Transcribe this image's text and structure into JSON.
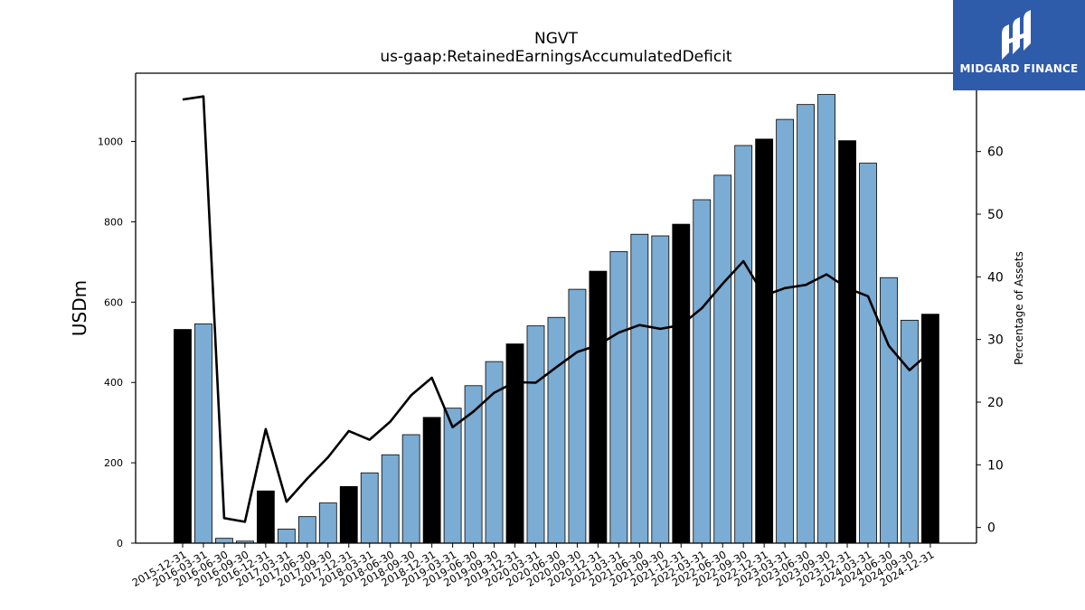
{
  "chart_data": {
    "type": "bar",
    "title": "NGVT",
    "subtitle": "us-gaap:RetainedEarningsAccumulatedDeficit",
    "ylabel": "USDm",
    "y2label": "Percentage of Assets",
    "ylim": [
      0,
      1170
    ],
    "y2lim": [
      -2.5,
      72.5
    ],
    "yticks": [
      0,
      200,
      400,
      600,
      800,
      1000
    ],
    "y2ticks": [
      0,
      10,
      20,
      30,
      40,
      50,
      60
    ],
    "categories": [
      "2015-12-31",
      "2016-03-31",
      "2016-06-30",
      "2016-09-30",
      "2016-12-31",
      "2017-03-31",
      "2017-06-30",
      "2017-09-30",
      "2017-12-31",
      "2018-03-31",
      "2018-06-30",
      "2018-09-30",
      "2018-12-31",
      "2019-03-31",
      "2019-06-30",
      "2019-09-30",
      "2019-12-31",
      "2020-03-31",
      "2020-06-30",
      "2020-09-30",
      "2020-12-31",
      "2021-03-31",
      "2021-06-30",
      "2021-09-30",
      "2021-12-31",
      "2022-03-31",
      "2022-06-30",
      "2022-09-30",
      "2022-12-31",
      "2023-03-31",
      "2023-06-30",
      "2023-09-30",
      "2023-12-31",
      "2024-03-31",
      "2024-06-30",
      "2024-09-30",
      "2024-12-31"
    ],
    "series": [
      {
        "kind": "bar",
        "values": [
          532,
          546,
          12,
          5,
          130,
          35,
          66,
          100,
          141,
          175,
          220,
          270,
          313,
          336,
          392,
          452,
          496,
          541,
          562,
          632,
          677,
          726,
          769,
          765,
          794,
          855,
          916,
          990,
          1006,
          1055,
          1092,
          1117,
          1002,
          946,
          661,
          555,
          570
        ],
        "annual": [
          true,
          false,
          false,
          false,
          true,
          false,
          false,
          false,
          true,
          false,
          false,
          false,
          true,
          false,
          false,
          false,
          true,
          false,
          false,
          false,
          true,
          false,
          false,
          false,
          true,
          false,
          false,
          false,
          true,
          false,
          false,
          false,
          true,
          false,
          false,
          false,
          true
        ]
      },
      {
        "kind": "line",
        "axis": "secondary",
        "values": [
          68.3,
          68.8,
          1.5,
          0.9,
          15.7,
          4.1,
          7.8,
          11.2,
          15.4,
          14.0,
          16.9,
          21.1,
          23.9,
          16.0,
          18.5,
          21.5,
          23.2,
          23.1,
          25.6,
          28.0,
          29.1,
          31.1,
          32.3,
          31.7,
          32.3,
          35.0,
          38.9,
          42.5,
          37.0,
          38.2,
          38.7,
          40.4,
          38.2,
          36.9,
          29.0,
          25.1,
          28.0
        ]
      }
    ],
    "colors": {
      "annual_bar": "#000000",
      "quarter_bar": "#7bacd3",
      "line": "#000000",
      "axes": "#000000"
    }
  },
  "logo": {
    "text": "MIDGARD FINANCE",
    "icon": "midgard-logo-icon",
    "color": "#2f5bab"
  }
}
